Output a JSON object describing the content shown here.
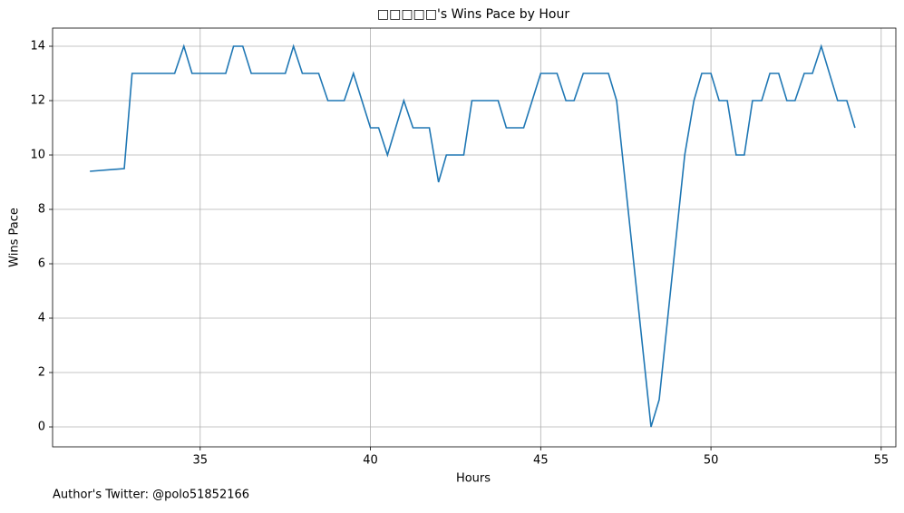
{
  "chart_data": {
    "type": "line",
    "title": "□□□□□'s Wins Pace by Hour",
    "x_label": "Hours",
    "y_label": "Wins Pace",
    "footer": "Author's Twitter: @polo51852166",
    "x": [
      31.76,
      32.77,
      33.0,
      34.25,
      34.52,
      34.76,
      35.75,
      35.98,
      36.25,
      36.5,
      37.5,
      37.74,
      38.0,
      38.48,
      38.75,
      39.23,
      39.5,
      40.0,
      40.24,
      40.5,
      40.98,
      41.25,
      41.73,
      42.0,
      42.23,
      42.74,
      42.98,
      43.75,
      43.99,
      44.5,
      45.0,
      45.48,
      45.74,
      45.98,
      46.25,
      46.99,
      47.23,
      48.24,
      48.48,
      49.23,
      49.5,
      49.73,
      50.0,
      50.24,
      50.48,
      50.74,
      50.98,
      51.22,
      51.49,
      51.73,
      51.99,
      52.23,
      52.47,
      52.74,
      52.98,
      53.24,
      53.72,
      53.99,
      54.23
    ],
    "series": [
      {
        "color": "#1f77b4",
        "values": [
          9.4,
          9.5,
          13,
          13,
          14,
          13,
          13,
          14,
          14,
          13,
          13,
          14,
          13,
          13,
          12,
          12,
          13,
          11,
          11,
          10,
          12,
          11,
          11,
          9,
          10,
          10,
          12,
          12,
          11,
          11,
          13,
          13,
          12,
          12,
          13,
          13,
          12,
          0,
          1,
          10,
          12,
          13,
          13,
          12,
          12,
          10,
          10,
          12,
          12,
          13,
          13,
          12,
          12,
          13,
          13,
          14,
          12,
          12,
          11
        ]
      }
    ],
    "xlim": [
      30.665,
      55.43
    ],
    "xticks": [
      35,
      40,
      45,
      50,
      55
    ],
    "ylim": [
      -0.733,
      14.667
    ],
    "yticks": [
      0,
      2,
      4,
      6,
      8,
      10,
      12,
      14
    ],
    "grid": true
  }
}
